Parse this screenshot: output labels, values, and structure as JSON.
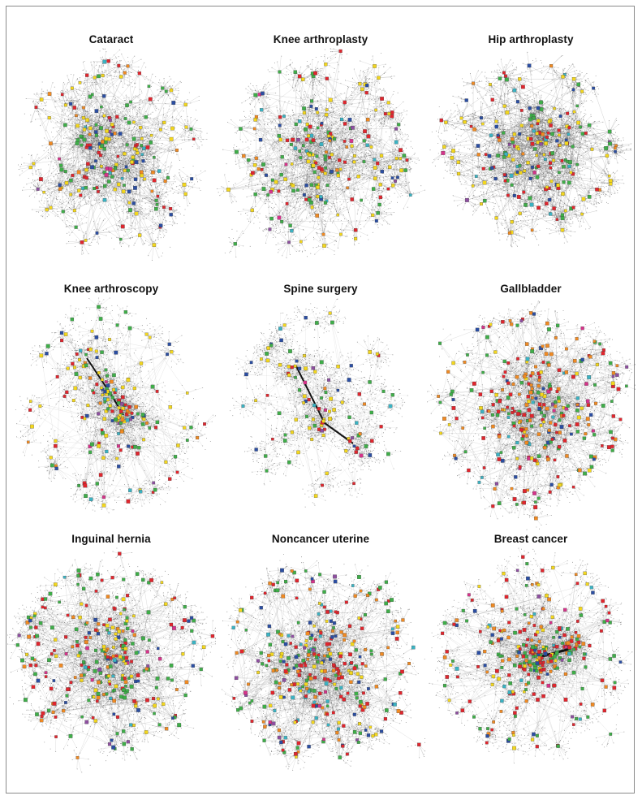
{
  "figure": {
    "panels": [
      {
        "title": "Cataract",
        "hubs": 210,
        "spoke": 3200,
        "dens": 0.6,
        "colors": [
          "#f3d71e",
          "#3fae49",
          "#e0262e",
          "#2b4ea2",
          "#f08a23",
          "#3bb3c3",
          "#8e4fa0",
          "#d6338a"
        ]
      },
      {
        "title": "Knee arthroplasty",
        "hubs": 230,
        "spoke": 3100,
        "dens": 0.55,
        "colors": [
          "#f3d71e",
          "#3fae49",
          "#e0262e",
          "#2b4ea2",
          "#f08a23",
          "#3bb3c3",
          "#8e4fa0",
          "#d6338a"
        ]
      },
      {
        "title": "Hip arthroplasty",
        "hubs": 220,
        "spoke": 3300,
        "dens": 0.7,
        "colors": [
          "#f3d71e",
          "#3fae49",
          "#e0262e",
          "#2b4ea2",
          "#f08a23",
          "#3bb3c3",
          "#8e4fa0",
          "#d6338a"
        ]
      },
      {
        "title": "Knee arthroscopy",
        "hubs": 190,
        "spoke": 2600,
        "dens": 0.4,
        "colors": [
          "#f3d71e",
          "#3fae49",
          "#e0262e",
          "#2b4ea2",
          "#f08a23",
          "#3bb3c3",
          "#8e4fa0",
          "#d6338a"
        ]
      },
      {
        "title": "Spine surgery",
        "hubs": 110,
        "spoke": 2400,
        "dens": 0.3,
        "colors": [
          "#f3d71e",
          "#3fae49",
          "#e0262e",
          "#2b4ea2",
          "#f08a23",
          "#3bb3c3",
          "#8e4fa0",
          "#d6338a"
        ]
      },
      {
        "title": "Gallbladder",
        "hubs": 320,
        "spoke": 3000,
        "dens": 0.5,
        "colors": [
          "#e0262e",
          "#f08a23",
          "#3fae49",
          "#f3d71e",
          "#2b4ea2",
          "#3bb3c3",
          "#8e4fa0",
          "#d6338a"
        ]
      },
      {
        "title": "Inguinal hernia",
        "hubs": 300,
        "spoke": 3000,
        "dens": 0.5,
        "colors": [
          "#3fae49",
          "#e0262e",
          "#f3d71e",
          "#f08a23",
          "#2b4ea2",
          "#3bb3c3",
          "#8e4fa0",
          "#d6338a"
        ]
      },
      {
        "title": "Noncancer uterine",
        "hubs": 340,
        "spoke": 3100,
        "dens": 0.5,
        "colors": [
          "#e0262e",
          "#3fae49",
          "#f08a23",
          "#f3d71e",
          "#2b4ea2",
          "#3bb3c3",
          "#8e4fa0",
          "#d6338a"
        ]
      },
      {
        "title": "Breast cancer",
        "hubs": 300,
        "spoke": 2900,
        "dens": 0.45,
        "colors": [
          "#e0262e",
          "#3fae49",
          "#f08a23",
          "#f3d71e",
          "#2b4ea2",
          "#3bb3c3",
          "#8e4fa0",
          "#d6338a"
        ]
      }
    ]
  }
}
